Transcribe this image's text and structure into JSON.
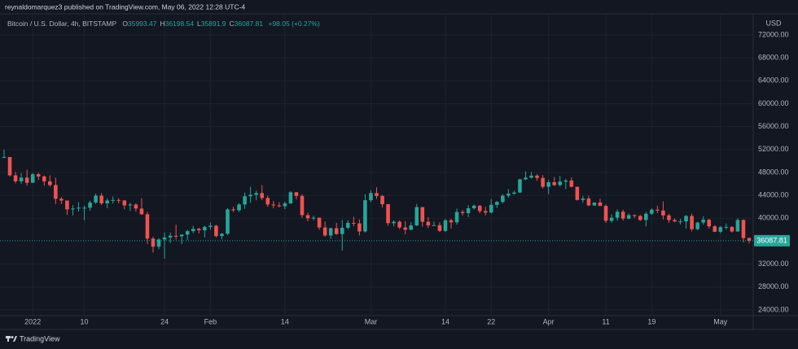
{
  "chart_data": {
    "type": "candlestick",
    "publish_note": "reynaldomarquez3 published on TradingView.com, May 06, 2022 12:28 UTC-4",
    "title": "Bitcoin / U.S. Dollar, 4h, BITSTAMP",
    "legend": [
      {
        "label": "O",
        "value": 35993.47
      },
      {
        "label": "H",
        "value": 36198.54
      },
      {
        "label": "L",
        "value": 35891.9
      },
      {
        "label": "C",
        "value": 36087.81
      }
    ],
    "change": {
      "value": 98.05,
      "label": "+98.05 (+0.27%)"
    },
    "currency": "USD",
    "footer": "TradingView",
    "up_color": "#26a69a",
    "down_color": "#ef5350",
    "grid": true,
    "last_price": {
      "value": 36087.81,
      "label": "36087.81"
    },
    "ylim": [
      23000,
      75700
    ],
    "yticks": [
      {
        "value": 72000,
        "label": "72000.00"
      },
      {
        "value": 68000,
        "label": "68000.00"
      },
      {
        "value": 64000,
        "label": "64000.00"
      },
      {
        "value": 60000,
        "label": "60000.00"
      },
      {
        "value": 56000,
        "label": "56000.00"
      },
      {
        "value": 52000,
        "label": "52000.00"
      },
      {
        "value": 48000,
        "label": "48000.00"
      },
      {
        "value": 44000,
        "label": "44000.00"
      },
      {
        "value": 40000,
        "label": "40000.00"
      },
      {
        "value": 32000,
        "label": "32000.00"
      },
      {
        "value": 28000,
        "label": "28000.00"
      },
      {
        "value": 24000,
        "label": "24000.00"
      }
    ],
    "categories": [
      null,
      null,
      null,
      null,
      null,
      "2022",
      null,
      null,
      null,
      null,
      null,
      null,
      null,
      null,
      "10",
      null,
      null,
      null,
      null,
      null,
      null,
      null,
      null,
      null,
      null,
      null,
      null,
      null,
      "24",
      null,
      null,
      null,
      null,
      null,
      null,
      null,
      "Feb",
      null,
      null,
      null,
      null,
      null,
      null,
      null,
      null,
      null,
      null,
      null,
      null,
      "14",
      null,
      null,
      null,
      null,
      null,
      null,
      null,
      null,
      null,
      null,
      null,
      null,
      null,
      null,
      "Mar",
      null,
      null,
      null,
      null,
      null,
      null,
      null,
      null,
      null,
      null,
      null,
      null,
      "14",
      null,
      null,
      null,
      null,
      null,
      null,
      null,
      "22",
      null,
      null,
      null,
      null,
      null,
      null,
      null,
      null,
      null,
      "Apr",
      null,
      null,
      null,
      null,
      null,
      null,
      null,
      null,
      null,
      "11",
      null,
      null,
      null,
      null,
      null,
      null,
      null,
      "19",
      null,
      null,
      null,
      null,
      null,
      null,
      null,
      null,
      null,
      null,
      null,
      "May",
      null,
      null,
      null,
      null,
      null
    ],
    "open": [
      50700,
      50700,
      47500,
      46450,
      47100,
      46200,
      47700,
      47300,
      46450,
      45800,
      43400,
      43100,
      41550,
      41700,
      41850,
      41850,
      42750,
      43950,
      42600,
      43100,
      43200,
      43100,
      42250,
      42400,
      41700,
      40700,
      36450,
      35050,
      36300,
      36650,
      36950,
      36850,
      37150,
      37750,
      38150,
      37900,
      38500,
      38700,
      36900,
      37300,
      41550,
      41400,
      42400,
      43850,
      44100,
      44400,
      43550,
      42400,
      42250,
      42100,
      42600,
      44550,
      43900,
      40550,
      40000,
      40100,
      38400,
      37000,
      38250,
      37250,
      38350,
      39200,
      39100,
      37700,
      43150,
      44400,
      43900,
      42450,
      39150,
      39400,
      38400,
      38000,
      38750,
      41950,
      39400,
      38750,
      38800,
      37800,
      39650,
      39300,
      41100,
      40900,
      41750,
      42200,
      41250,
      41000,
      42350,
      42850,
      43950,
      44300,
      44500,
      46800,
      47100,
      47450,
      47050,
      45500,
      46300,
      45800,
      46400,
      46600,
      45500,
      43200,
      43450,
      42250,
      42750,
      42150,
      39550,
      40100,
      41150,
      39950,
      40550,
      40400,
      39700,
      40800,
      41500,
      41350,
      40500,
      39700,
      39450,
      39450,
      40400,
      38100,
      39250,
      39750,
      38600,
      37650,
      38450,
      38500,
      37700,
      39700,
      36550
    ],
    "high": [
      52000,
      50700,
      48100,
      47900,
      48500,
      47900,
      47950,
      47500,
      47500,
      47100,
      43700,
      43100,
      42300,
      42800,
      42200,
      43100,
      44300,
      44400,
      43450,
      43800,
      43500,
      43200,
      42700,
      42600,
      43500,
      41100,
      36800,
      36500,
      37550,
      37500,
      38900,
      37200,
      38000,
      38700,
      38350,
      38700,
      39250,
      38850,
      37400,
      41750,
      42000,
      42650,
      44500,
      45500,
      44800,
      45800,
      43950,
      43000,
      42800,
      42900,
      44750,
      44550,
      44200,
      40950,
      40450,
      40150,
      39450,
      38400,
      39200,
      39700,
      39650,
      40250,
      39800,
      44200,
      44900,
      45400,
      44100,
      42500,
      39650,
      39650,
      39500,
      39300,
      42500,
      41950,
      40200,
      39450,
      39300,
      39900,
      39900,
      41700,
      41450,
      42300,
      42400,
      42300,
      42000,
      43350,
      43000,
      44200,
      45100,
      44800,
      46900,
      48200,
      48100,
      47700,
      47550,
      46700,
      47200,
      47400,
      46900,
      47150,
      45500,
      43900,
      43950,
      42800,
      43400,
      42400,
      40700,
      41550,
      41500,
      40850,
      40700,
      40600,
      41100,
      41750,
      42200,
      42950,
      40800,
      39950,
      39900,
      40600,
      40800,
      39400,
      40350,
      39900,
      38800,
      38650,
      39100,
      38600,
      40000,
      39800,
      36650
    ],
    "low": [
      50500,
      47300,
      46100,
      46000,
      45700,
      46200,
      46700,
      45700,
      45500,
      42500,
      42500,
      40600,
      40500,
      41200,
      39650,
      41300,
      42500,
      42300,
      41750,
      42600,
      42600,
      41550,
      41250,
      41150,
      40600,
      35500,
      34000,
      34600,
      32950,
      35700,
      36300,
      35500,
      36200,
      37400,
      37350,
      36650,
      38000,
      36650,
      36300,
      37100,
      41100,
      41100,
      41650,
      42700,
      43150,
      43200,
      42000,
      41750,
      41900,
      41600,
      42500,
      43300,
      40100,
      39450,
      39650,
      38000,
      36800,
      36400,
      37100,
      34350,
      38050,
      38600,
      37000,
      37500,
      42800,
      43400,
      41900,
      38700,
      38600,
      38100,
      37200,
      37900,
      38650,
      38550,
      38300,
      38700,
      37600,
      37600,
      38200,
      38900,
      40500,
      40200,
      41500,
      40900,
      40500,
      40850,
      41800,
      42600,
      43600,
      44100,
      44400,
      46650,
      46950,
      46550,
      45200,
      44200,
      45650,
      45550,
      45100,
      45400,
      43100,
      42700,
      42100,
      42150,
      42400,
      39200,
      39250,
      39600,
      39600,
      39800,
      40050,
      39550,
      38600,
      40600,
      40900,
      39800,
      39200,
      39300,
      38950,
      38200,
      37700,
      37900,
      38900,
      38200,
      37600,
      37400,
      38050,
      37500,
      37650,
      35800,
      35600
    ],
    "close": [
      50700,
      47500,
      46450,
      47100,
      46200,
      47700,
      47300,
      46450,
      45800,
      43400,
      43100,
      41550,
      41700,
      41850,
      41850,
      42750,
      43950,
      42600,
      43100,
      43200,
      43100,
      42250,
      42400,
      41700,
      40700,
      36450,
      35050,
      36300,
      36650,
      36950,
      36850,
      37150,
      37750,
      38150,
      37900,
      38500,
      38700,
      36900,
      37300,
      41550,
      41400,
      42400,
      43850,
      44100,
      44400,
      43550,
      42400,
      42250,
      42100,
      42600,
      44550,
      43900,
      40550,
      40000,
      40100,
      38400,
      37000,
      38250,
      37250,
      38350,
      39200,
      39100,
      37700,
      43150,
      44400,
      43900,
      42450,
      39150,
      39400,
      38400,
      38000,
      38750,
      41950,
      39400,
      38750,
      38800,
      37800,
      39650,
      39300,
      41100,
      40900,
      41750,
      42200,
      41250,
      41000,
      42350,
      42850,
      43950,
      44300,
      44500,
      46800,
      47100,
      47450,
      47050,
      45500,
      46300,
      45800,
      46400,
      46600,
      45500,
      43200,
      43450,
      42250,
      42750,
      42150,
      39550,
      40100,
      41150,
      39950,
      40550,
      40400,
      39700,
      40800,
      41500,
      41350,
      40500,
      39700,
      39450,
      39450,
      40400,
      38100,
      39250,
      39750,
      38600,
      37650,
      38450,
      38500,
      37700,
      39700,
      36550,
      36088
    ]
  }
}
